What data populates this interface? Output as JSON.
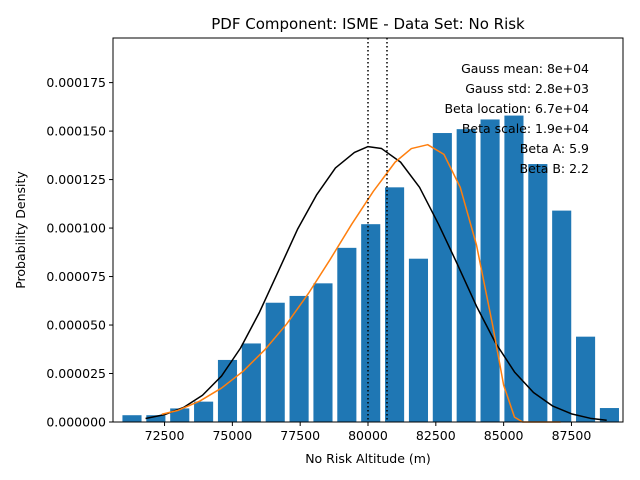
{
  "chart_data": {
    "type": "bar",
    "title": "PDF Component: ISME - Data Set: No Risk",
    "xlabel": "No Risk Altitude (m)",
    "ylabel": "Probability Density",
    "xlim": [
      70600,
      89400
    ],
    "ylim": [
      0,
      0.000198
    ],
    "xticks": [
      72500,
      75000,
      77500,
      80000,
      82500,
      85000,
      87500
    ],
    "xtick_labels": [
      "72500",
      "75000",
      "77500",
      "80000",
      "82500",
      "85000",
      "87500"
    ],
    "yticks": [
      0,
      2.5e-05,
      5e-05,
      7.5e-05,
      0.0001,
      0.000125,
      0.00015,
      0.000175
    ],
    "ytick_labels": [
      "0.000000",
      "0.000025",
      "0.000050",
      "0.000075",
      "0.000100",
      "0.000125",
      "0.000150",
      "0.000175"
    ],
    "grid": false,
    "bar_color": "#1f77b4",
    "bin_width": 880,
    "bins": [
      {
        "x": 71300,
        "value": 3.5e-06
      },
      {
        "x": 72180,
        "value": 3.5e-06
      },
      {
        "x": 73060,
        "value": 7e-06
      },
      {
        "x": 73940,
        "value": 1.05e-05
      },
      {
        "x": 74820,
        "value": 3.2e-05
      },
      {
        "x": 75700,
        "value": 4.05e-05
      },
      {
        "x": 76580,
        "value": 6.15e-05
      },
      {
        "x": 77460,
        "value": 6.5e-05
      },
      {
        "x": 78340,
        "value": 7.15e-05
      },
      {
        "x": 79220,
        "value": 8.98e-05
      },
      {
        "x": 80100,
        "value": 0.000102
      },
      {
        "x": 80980,
        "value": 0.000121
      },
      {
        "x": 81860,
        "value": 8.42e-05
      },
      {
        "x": 82740,
        "value": 0.000149
      },
      {
        "x": 83620,
        "value": 0.000151
      },
      {
        "x": 84500,
        "value": 0.000156
      },
      {
        "x": 85380,
        "value": 0.000158
      },
      {
        "x": 86260,
        "value": 0.000133
      },
      {
        "x": 87140,
        "value": 0.000109
      },
      {
        "x": 88020,
        "value": 4.4e-05
      },
      {
        "x": 88900,
        "value": 7.2e-06
      }
    ],
    "series": [
      {
        "name": "Gauss",
        "color": "#000000",
        "x": [
          71800,
          72500,
          73200,
          73900,
          74600,
          75300,
          76000,
          76700,
          77400,
          78100,
          78800,
          79500,
          80000,
          80500,
          81200,
          81900,
          82600,
          83300,
          84000,
          84700,
          85400,
          86100,
          86800,
          87500,
          88200,
          88800
        ],
        "y": [
          1.8e-06,
          3.8e-06,
          7.5e-06,
          1.38e-05,
          2.37e-05,
          3.81e-05,
          5.66e-05,
          7.79e-05,
          9.93e-05,
          0.000117,
          0.000131,
          0.000139,
          0.000142,
          0.000141,
          0.000134,
          0.000121,
          0.000102,
          8.12e-05,
          5.97e-05,
          4.08e-05,
          2.58e-05,
          1.52e-05,
          8.3e-06,
          4.2e-06,
          1.9e-06,
          9e-07
        ]
      },
      {
        "name": "Beta",
        "color": "#ff7f0e",
        "x": [
          72400,
          73000,
          73800,
          74600,
          75400,
          76200,
          77000,
          77800,
          78600,
          79400,
          80200,
          81000,
          81600,
          82200,
          82800,
          83400,
          84000,
          84600,
          85000,
          85400,
          85700,
          86100,
          86600,
          87100
        ],
        "y": [
          4e-06,
          6e-06,
          1.08e-05,
          1.75e-05,
          2.62e-05,
          3.73e-05,
          5.05e-05,
          6.62e-05,
          8.37e-05,
          0.000102,
          0.000119,
          0.000134,
          0.000141,
          0.000143,
          0.000138,
          0.000121,
          9.12e-05,
          4.95e-05,
          1.9e-05,
          2.5e-06,
          0,
          0,
          0,
          0
        ]
      }
    ],
    "vlines": [
      {
        "x": 80000,
        "style": "dotted",
        "color": "#000000"
      },
      {
        "x": 80700,
        "style": "dotted",
        "color": "#000000"
      }
    ],
    "annotations": [
      "Gauss mean: 8e+04",
      "Gauss std: 2.8e+03",
      "Beta location: 6.7e+04",
      "Beta scale: 1.9e+04",
      "Beta A: 5.9",
      "Beta B: 2.2"
    ]
  }
}
